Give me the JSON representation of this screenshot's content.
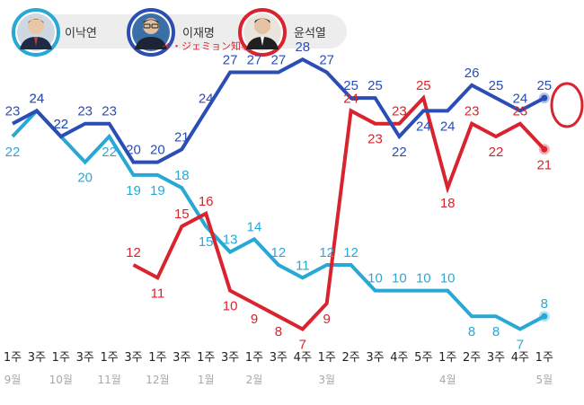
{
  "legend": [
    {
      "name": "이낙연",
      "color": "#29a8d6"
    },
    {
      "name": "이재명",
      "color": "#2b4eb5",
      "annotation": "イ・ジェミョン知事"
    },
    {
      "name": "윤석열",
      "color": "#d9232e"
    }
  ],
  "chart_data": {
    "type": "line",
    "categories": [
      "1주",
      "3주",
      "1주",
      "3주",
      "1주",
      "3주",
      "1주",
      "3주",
      "1주",
      "3주",
      "1주",
      "3주",
      "4주",
      "1주",
      "2주",
      "3주",
      "4주",
      "5주",
      "1주",
      "2주",
      "3주",
      "4주",
      "1주"
    ],
    "months": [
      {
        "label": "9월",
        "index": 0
      },
      {
        "label": "10월",
        "index": 2
      },
      {
        "label": "11월",
        "index": 4
      },
      {
        "label": "12월",
        "index": 6
      },
      {
        "label": "1월",
        "index": 8
      },
      {
        "label": "2월",
        "index": 10
      },
      {
        "label": "3월",
        "index": 13
      },
      {
        "label": "4월",
        "index": 18
      },
      {
        "label": "5월",
        "index": 22
      }
    ],
    "series": [
      {
        "name": "이재명",
        "color": "#2b4eb5",
        "values": [
          23,
          24,
          22,
          23,
          23,
          20,
          20,
          21,
          24,
          27,
          27,
          27,
          28,
          27,
          25,
          25,
          22,
          24,
          24,
          26,
          25,
          24,
          25
        ]
      },
      {
        "name": "윤석열",
        "color": "#d9232e",
        "values": [
          null,
          null,
          null,
          null,
          null,
          12,
          11,
          15,
          16,
          10,
          9,
          8,
          7,
          9,
          24,
          23,
          23,
          25,
          18,
          23,
          22,
          23,
          21
        ]
      },
      {
        "name": "이낙연",
        "color": "#29a8d6",
        "values": [
          22,
          24,
          22,
          20,
          22,
          19,
          19,
          18,
          15,
          13,
          14,
          12,
          11,
          12,
          12,
          10,
          10,
          10,
          10,
          8,
          8,
          7,
          8
        ]
      }
    ],
    "ylim": [
      5,
      30
    ],
    "grid": false,
    "legend_position": "top-left"
  }
}
